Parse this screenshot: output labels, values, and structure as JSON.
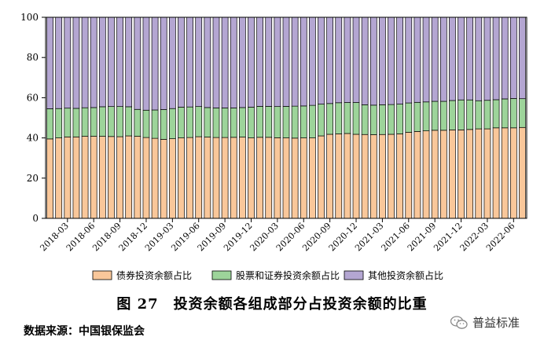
{
  "chart_data": {
    "type": "bar",
    "stacked": true,
    "ylim": [
      0,
      100
    ],
    "yticks": [
      0,
      20,
      40,
      60,
      80,
      100
    ],
    "x_tick_labels": [
      "2018-03",
      "2018-06",
      "2018-09",
      "2018-12",
      "2019-03",
      "2019-06",
      "2019-09",
      "2019-12",
      "2020-03",
      "2020-06",
      "2020-09",
      "2020-12",
      "2021-03",
      "2021-06",
      "2021-09",
      "2021-12",
      "2022-03",
      "2022-06"
    ],
    "categories": [
      "2018-01",
      "2018-02",
      "2018-03",
      "2018-04",
      "2018-05",
      "2018-06",
      "2018-07",
      "2018-08",
      "2018-09",
      "2018-10",
      "2018-11",
      "2018-12",
      "2019-01",
      "2019-02",
      "2019-03",
      "2019-04",
      "2019-05",
      "2019-06",
      "2019-07",
      "2019-08",
      "2019-09",
      "2019-10",
      "2019-11",
      "2019-12",
      "2020-01",
      "2020-02",
      "2020-03",
      "2020-04",
      "2020-05",
      "2020-06",
      "2020-07",
      "2020-08",
      "2020-09",
      "2020-10",
      "2020-11",
      "2020-12",
      "2021-01",
      "2021-02",
      "2021-03",
      "2021-04",
      "2021-05",
      "2021-06",
      "2021-07",
      "2021-08",
      "2021-09",
      "2021-10",
      "2021-11",
      "2021-12",
      "2022-01",
      "2022-02",
      "2022-03",
      "2022-04",
      "2022-05",
      "2022-06",
      "2022-07"
    ],
    "series": [
      {
        "name": "债券投资余额占比",
        "color": "#f9c79a",
        "values": [
          39.5,
          40.0,
          40.5,
          40.5,
          40.8,
          40.8,
          40.8,
          40.7,
          40.6,
          41.0,
          40.8,
          40.2,
          39.8,
          39.3,
          39.6,
          40.0,
          40.2,
          40.6,
          40.4,
          40.2,
          40.2,
          40.3,
          40.4,
          40.0,
          40.3,
          40.3,
          40.1,
          40.0,
          39.9,
          40.0,
          40.0,
          41.0,
          41.8,
          42.0,
          42.2,
          41.8,
          41.7,
          41.6,
          41.7,
          41.8,
          42.0,
          42.8,
          43.2,
          43.5,
          43.8,
          43.8,
          44.0,
          44.0,
          44.2,
          44.5,
          44.5,
          45.0,
          45.0,
          45.0,
          45.2
        ]
      },
      {
        "name": "股票和证券投资余额占比",
        "color": "#9dd49a",
        "values": [
          15.0,
          14.6,
          14.3,
          14.2,
          14.2,
          14.3,
          14.7,
          14.9,
          15.0,
          14.5,
          13.4,
          13.6,
          14.1,
          14.8,
          15.0,
          15.3,
          15.2,
          15.0,
          14.7,
          14.7,
          14.7,
          14.6,
          14.7,
          15.3,
          15.4,
          15.4,
          15.5,
          15.7,
          15.9,
          15.9,
          16.2,
          15.8,
          15.3,
          15.5,
          15.4,
          15.8,
          14.8,
          14.7,
          14.8,
          14.8,
          14.8,
          14.6,
          14.5,
          14.4,
          14.4,
          14.4,
          14.6,
          14.9,
          14.7,
          14.0,
          14.2,
          14.0,
          14.4,
          14.6,
          14.3
        ]
      },
      {
        "name": "其他投资余额占比",
        "color": "#b4a6d2",
        "values": [
          45.5,
          45.4,
          45.2,
          45.3,
          45.0,
          44.9,
          44.5,
          44.4,
          44.4,
          44.5,
          45.8,
          46.2,
          46.1,
          45.9,
          45.4,
          44.7,
          44.6,
          44.4,
          44.9,
          45.1,
          45.1,
          45.1,
          44.9,
          44.7,
          44.3,
          44.3,
          44.4,
          44.3,
          44.2,
          44.1,
          43.8,
          43.2,
          42.9,
          42.5,
          42.4,
          42.4,
          43.5,
          43.7,
          43.5,
          43.4,
          43.2,
          42.6,
          42.3,
          42.1,
          41.8,
          41.8,
          41.4,
          41.1,
          41.1,
          41.5,
          41.3,
          41.0,
          40.6,
          40.4,
          40.5
        ]
      }
    ],
    "legend_position": "bottom"
  },
  "caption": "图 27　投资余额各组成部分占投资余额的比重",
  "source": "数据来源：中国银保监会",
  "watermark": "普益标准"
}
